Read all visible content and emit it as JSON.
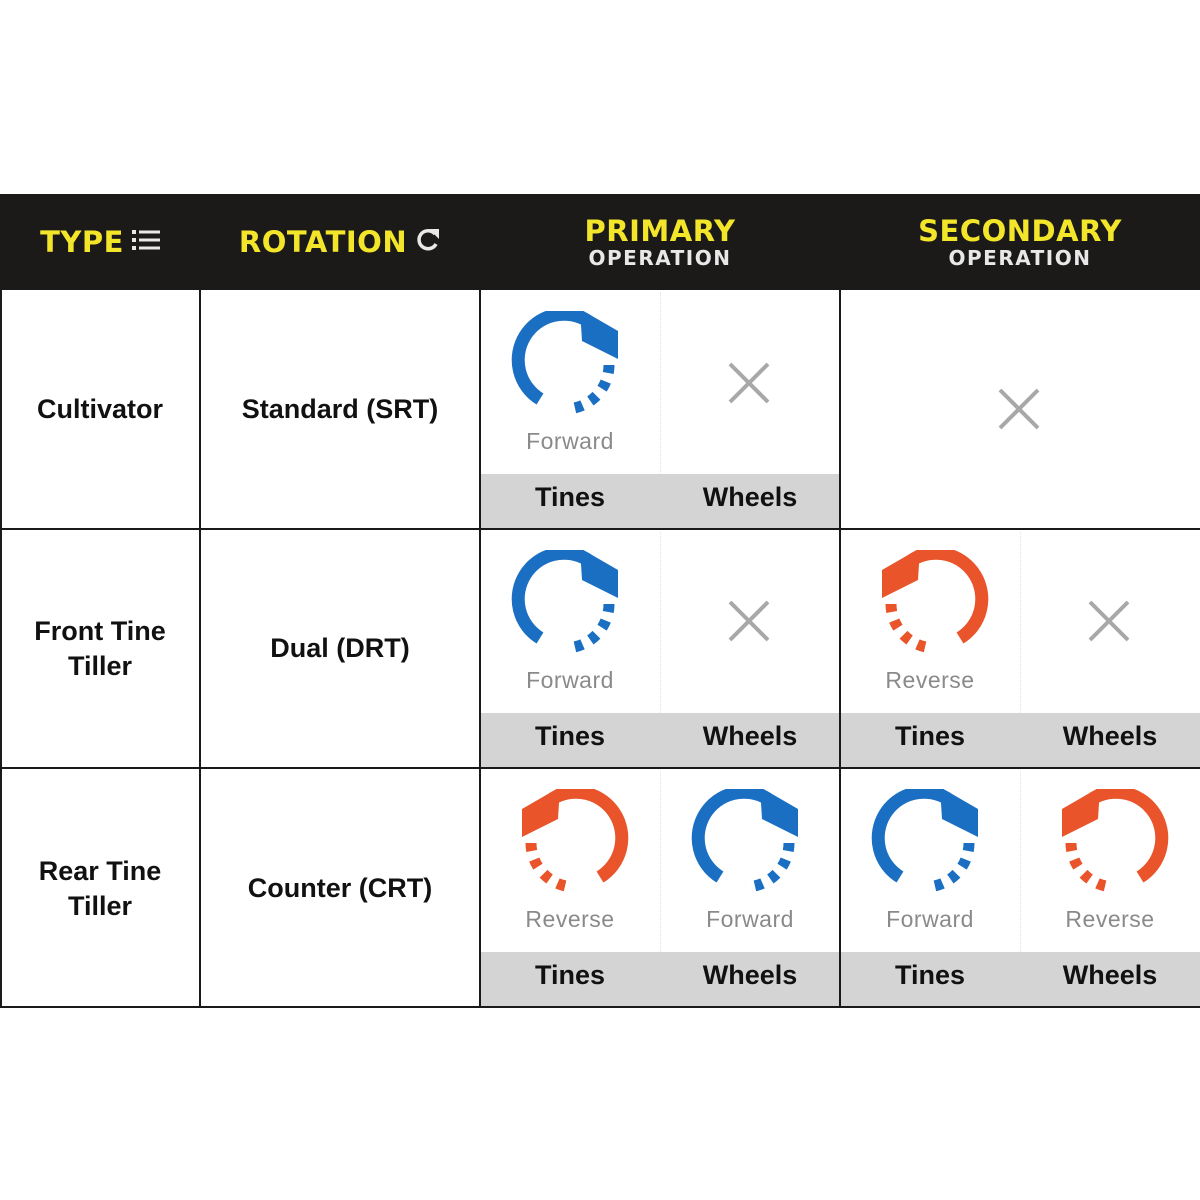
{
  "header": {
    "type": "TYPE",
    "rotation": "ROTATION",
    "primary": "PRIMARY",
    "primary_sub": "OPERATION",
    "secondary": "SECONDARY",
    "secondary_sub": "OPERATION"
  },
  "colors": {
    "header_bg": "#1b1a18",
    "header_accent": "#f3e62a",
    "forward": "#1a6fc2",
    "reverse": "#e9542a",
    "cell_grey": "#d4d4d4"
  },
  "icons": {
    "forward": "clockwise-arrow-icon",
    "reverse": "counterclockwise-arrow-icon",
    "none": "x-mark-icon"
  },
  "rows": [
    {
      "type": "Cultivator",
      "rotation": "Standard (SRT)",
      "primary": {
        "tines": {
          "label": "Tines",
          "dir": "Forward"
        },
        "wheels": {
          "label": "Wheels",
          "dir": ""
        }
      },
      "secondary": null
    },
    {
      "type": "Front Tine Tiller",
      "rotation": "Dual (DRT)",
      "primary": {
        "tines": {
          "label": "Tines",
          "dir": "Forward"
        },
        "wheels": {
          "label": "Wheels",
          "dir": ""
        }
      },
      "secondary": {
        "tines": {
          "label": "Tines",
          "dir": "Reverse"
        },
        "wheels": {
          "label": "Wheels",
          "dir": ""
        }
      }
    },
    {
      "type": "Rear Tine Tiller",
      "rotation": "Counter (CRT)",
      "primary": {
        "tines": {
          "label": "Tines",
          "dir": "Reverse"
        },
        "wheels": {
          "label": "Wheels",
          "dir": "Forward"
        }
      },
      "secondary": {
        "tines": {
          "label": "Tines",
          "dir": "Forward"
        },
        "wheels": {
          "label": "Wheels",
          "dir": "Reverse"
        }
      }
    }
  ]
}
